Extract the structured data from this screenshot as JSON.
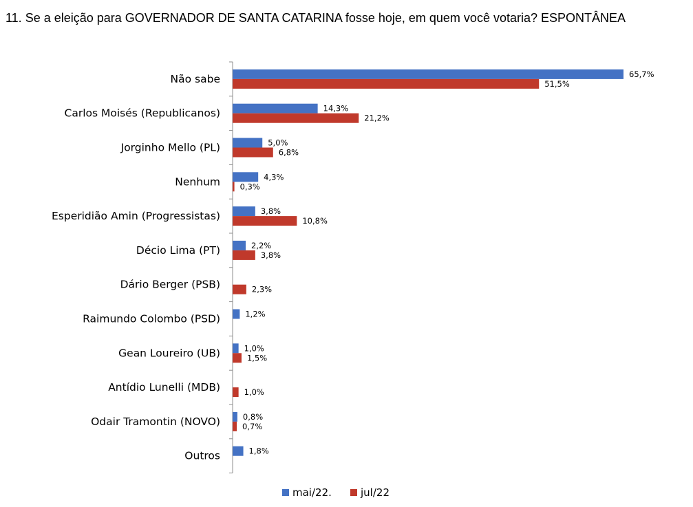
{
  "title": "11. Se a eleição para GOVERNADOR DE SANTA CATARINA fosse hoje, em quem você votaria? ESPONTÂNEA",
  "colors": {
    "mai": "#4472C4",
    "jul": "#C0392B",
    "axis": "#8c8c8c"
  },
  "chart_data": {
    "type": "bar",
    "orientation": "horizontal",
    "title": "11. Se a eleição para GOVERNADOR DE SANTA CATARINA fosse hoje, em quem você votaria? ESPONTÂNEA",
    "categories": [
      "Não sabe",
      "Carlos Moisés (Republicanos)",
      "Jorginho Mello (PL)",
      "Nenhum",
      "Esperidião Amin (Progressistas)",
      "Décio Lima (PT)",
      "Dário Berger (PSB)",
      "Raimundo Colombo (PSD)",
      "Gean Loureiro (UB)",
      "Antídio Lunelli (MDB)",
      "Odair Tramontin (NOVO)",
      "Outros"
    ],
    "series": [
      {
        "name": "mai/22.",
        "values": [
          65.7,
          14.3,
          5.0,
          4.3,
          3.8,
          2.2,
          null,
          1.2,
          1.0,
          null,
          0.8,
          1.8
        ],
        "labels": [
          "65,7%",
          "14,3%",
          "5,0%",
          "4,3%",
          "3,8%",
          "2,2%",
          "",
          "1,2%",
          "1,0%",
          "",
          "0,8%",
          "1,8%"
        ]
      },
      {
        "name": "jul/22",
        "values": [
          51.5,
          21.2,
          6.8,
          0.3,
          10.8,
          3.8,
          2.3,
          null,
          1.5,
          1.0,
          0.7,
          null
        ],
        "labels": [
          "51,5%",
          "21,2%",
          "6,8%",
          "0,3%",
          "10,8%",
          "3,8%",
          "2,3%",
          "",
          "1,5%",
          "1,0%",
          "0,7%",
          ""
        ]
      }
    ],
    "xlim": [
      0,
      65.7
    ],
    "grid": false,
    "legend": "bottom-center"
  }
}
